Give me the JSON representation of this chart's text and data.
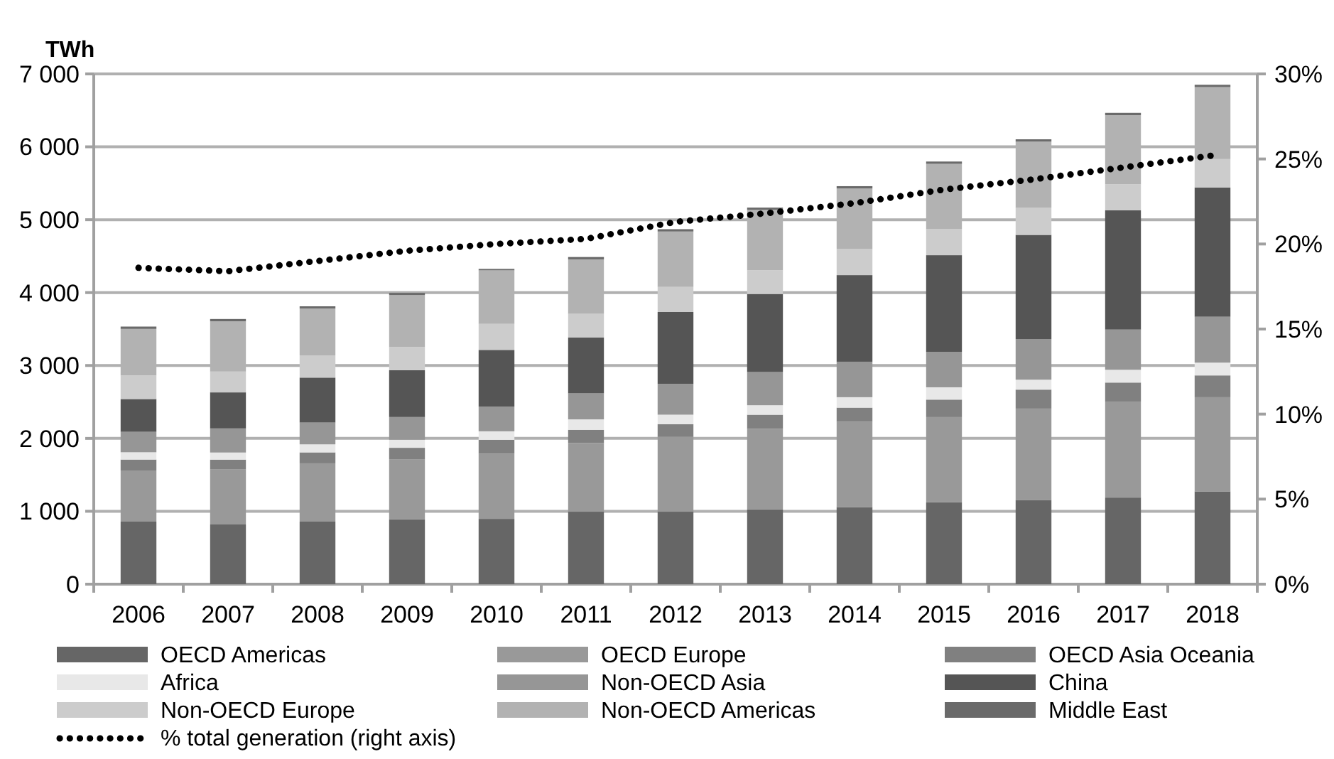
{
  "chart_data": {
    "type": "bar",
    "stacked": true,
    "ylabel": "TWh",
    "categories": [
      "2006",
      "2007",
      "2008",
      "2009",
      "2010",
      "2011",
      "2012",
      "2013",
      "2014",
      "2015",
      "2016",
      "2017",
      "2018"
    ],
    "series": [
      {
        "name": "OECD Americas",
        "color": "#666666",
        "values": [
          858,
          819,
          858,
          890,
          896,
          994,
          994,
          1026,
          1058,
          1123,
          1156,
          1188,
          1273
        ]
      },
      {
        "name": "OECD Europe",
        "color": "#999999",
        "values": [
          702,
          754,
          800,
          825,
          896,
          942,
          1026,
          1104,
          1169,
          1169,
          1253,
          1318,
          1292
        ]
      },
      {
        "name": "OECD Asia Oceania",
        "color": "#808080",
        "values": [
          150,
          136,
          150,
          156,
          188,
          182,
          175,
          195,
          195,
          240,
          260,
          260,
          299
        ]
      },
      {
        "name": "Africa",
        "color": "#e8e8e8",
        "values": [
          100,
          97,
          110,
          110,
          117,
          143,
          130,
          130,
          143,
          169,
          136,
          175,
          175
        ]
      },
      {
        "name": "Non-OECD Asia",
        "color": "#969696",
        "values": [
          280,
          331,
          299,
          312,
          338,
          357,
          422,
          455,
          487,
          487,
          558,
          552,
          630
        ]
      },
      {
        "name": "China",
        "color": "#555555",
        "values": [
          450,
          494,
          617,
          643,
          779,
          766,
          987,
          1071,
          1188,
          1325,
          1429,
          1636,
          1773
        ]
      },
      {
        "name": "Non-OECD Europe",
        "color": "#cccccc",
        "values": [
          325,
          286,
          305,
          318,
          357,
          325,
          344,
          325,
          357,
          357,
          370,
          357,
          390
        ]
      },
      {
        "name": "Non-OECD Americas",
        "color": "#b2b2b2",
        "values": [
          637,
          689,
          643,
          712,
          734,
          747,
          760,
          830,
          831,
          896,
          909,
          948,
          987
        ]
      },
      {
        "name": "Middle East",
        "color": "#6a6a6a",
        "values": [
          32,
          32,
          30,
          30,
          20,
          32,
          32,
          30,
          32,
          32,
          32,
          32,
          32
        ]
      },
      {
        "name": "% total generation   (right axis)",
        "type": "line",
        "axis": "y2",
        "color": "#000000",
        "line_style": "dotted",
        "values": [
          18.6,
          18.4,
          19.0,
          19.6,
          20.0,
          20.3,
          21.3,
          21.8,
          22.4,
          23.2,
          23.8,
          24.5,
          25.2
        ]
      }
    ],
    "ylim": [
      0,
      7000
    ],
    "yticks": [
      {
        "value": 0,
        "label": "0"
      },
      {
        "value": 1000,
        "label": "1 000"
      },
      {
        "value": 2000,
        "label": "2 000"
      },
      {
        "value": 3000,
        "label": "3 000"
      },
      {
        "value": 4000,
        "label": "4 000"
      },
      {
        "value": 5000,
        "label": "5 000"
      },
      {
        "value": 6000,
        "label": "6 000"
      },
      {
        "value": 7000,
        "label": "7 000"
      }
    ],
    "y2lim": [
      0,
      30
    ],
    "y2ticks": [
      {
        "value": 0,
        "label": "0%"
      },
      {
        "value": 5,
        "label": "5%"
      },
      {
        "value": 10,
        "label": "10%"
      },
      {
        "value": 15,
        "label": "15%"
      },
      {
        "value": 20,
        "label": "20%"
      },
      {
        "value": 25,
        "label": "25%"
      },
      {
        "value": 30,
        "label": "30%"
      }
    ],
    "grid": "y",
    "legend": "bottom"
  }
}
